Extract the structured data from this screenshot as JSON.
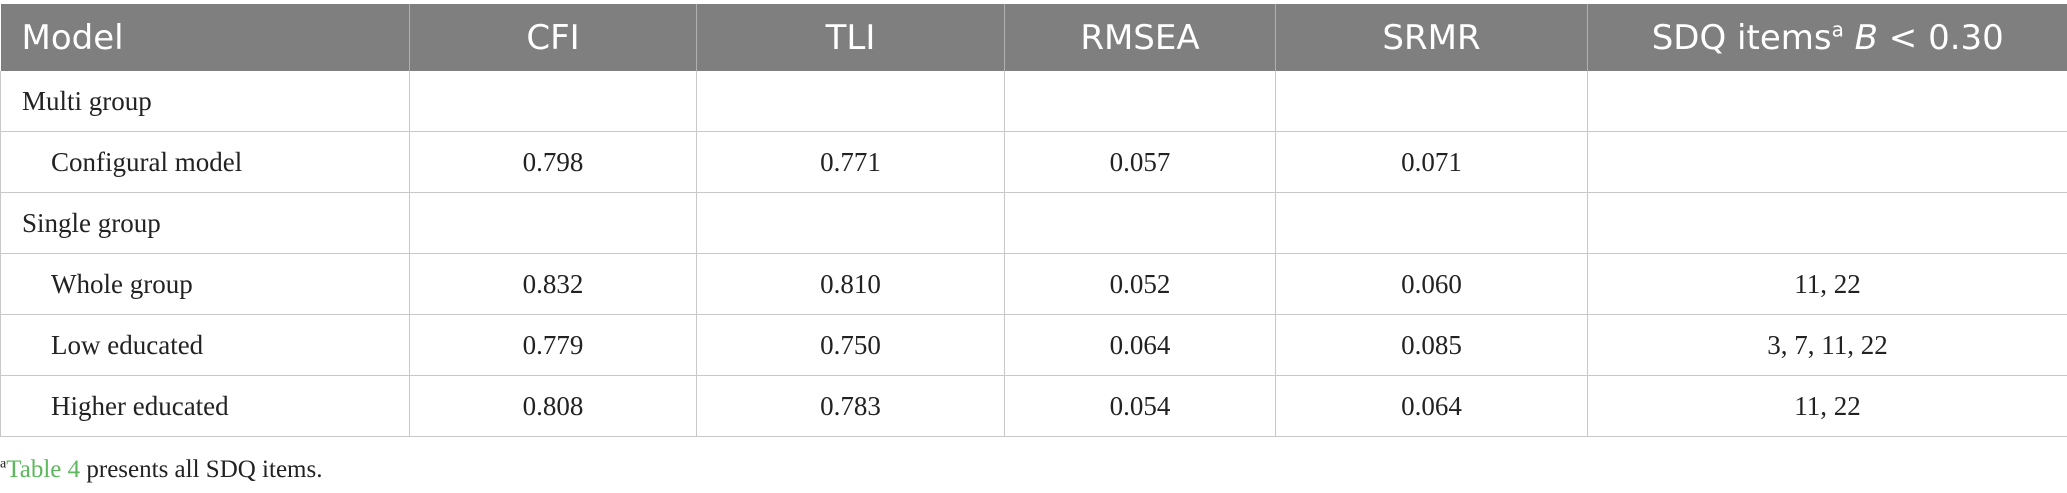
{
  "table": {
    "headers": {
      "model": "Model",
      "cfi": "CFI",
      "tli": "TLI",
      "rmsea": "RMSEA",
      "srmr": "SRMR",
      "sdq_prefix": "SDQ items",
      "sdq_sup": "a",
      "sdq_b": "B",
      "sdq_suffix": " < 0.30"
    },
    "rows": [
      {
        "model": "Multi group",
        "cfi": "",
        "tli": "",
        "rmsea": "",
        "srmr": "",
        "sdq": ""
      },
      {
        "model": "Configural model",
        "cfi": "0.798",
        "tli": "0.771",
        "rmsea": "0.057",
        "srmr": "0.071",
        "sdq": ""
      },
      {
        "model": "Single group",
        "cfi": "",
        "tli": "",
        "rmsea": "",
        "srmr": "",
        "sdq": ""
      },
      {
        "model": "Whole group",
        "cfi": "0.832",
        "tli": "0.810",
        "rmsea": "0.052",
        "srmr": "0.060",
        "sdq": "11, 22"
      },
      {
        "model": "Low educated",
        "cfi": "0.779",
        "tli": "0.750",
        "rmsea": "0.064",
        "srmr": "0.085",
        "sdq": "3, 7, 11, 22"
      },
      {
        "model": "Higher educated",
        "cfi": "0.808",
        "tli": "0.783",
        "rmsea": "0.054",
        "srmr": "0.064",
        "sdq": "11, 22"
      }
    ]
  },
  "footnote": {
    "sup": "a",
    "link_text": "Table 4",
    "text": " presents all SDQ items."
  },
  "colors": {
    "header_bg": "#7f7f7f",
    "header_text": "#ffffff",
    "link": "#5cb85c",
    "border": "#c8c8c8"
  }
}
